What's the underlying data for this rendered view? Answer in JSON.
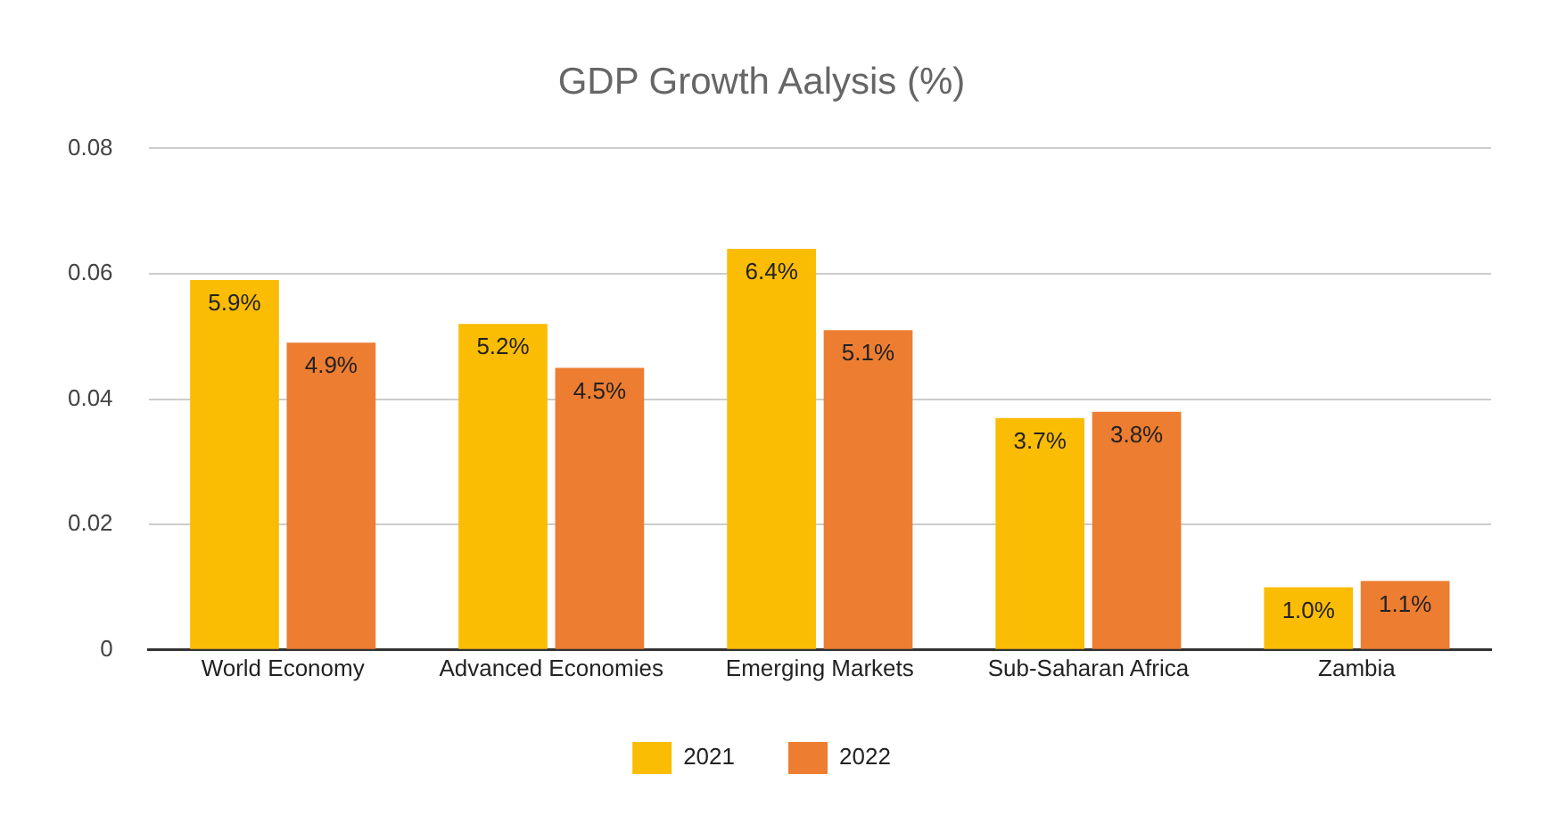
{
  "chart_data": {
    "type": "bar",
    "title": "GDP Growth Aalysis (%)",
    "categories": [
      "World Economy",
      "Advanced Economies",
      "Emerging Markets",
      "Sub-Saharan Africa",
      "Zambia"
    ],
    "series": [
      {
        "name": "2021",
        "color": "#fbbc04",
        "values": [
          0.059,
          0.052,
          0.064,
          0.037,
          0.01
        ],
        "value_labels": [
          "5.9%",
          "5.2%",
          "6.4%",
          "3.7%",
          "1.0%"
        ]
      },
      {
        "name": "2022",
        "color": "#ed7d31",
        "values": [
          0.049,
          0.045,
          0.051,
          0.038,
          0.011
        ],
        "value_labels": [
          "4.9%",
          "4.5%",
          "5.1%",
          "3.8%",
          "1.1%"
        ]
      }
    ],
    "ylim": [
      0,
      0.08
    ],
    "yticks": [
      0,
      0.02,
      0.04,
      0.06,
      0.08
    ],
    "grid": "y",
    "legend": "bottom"
  }
}
